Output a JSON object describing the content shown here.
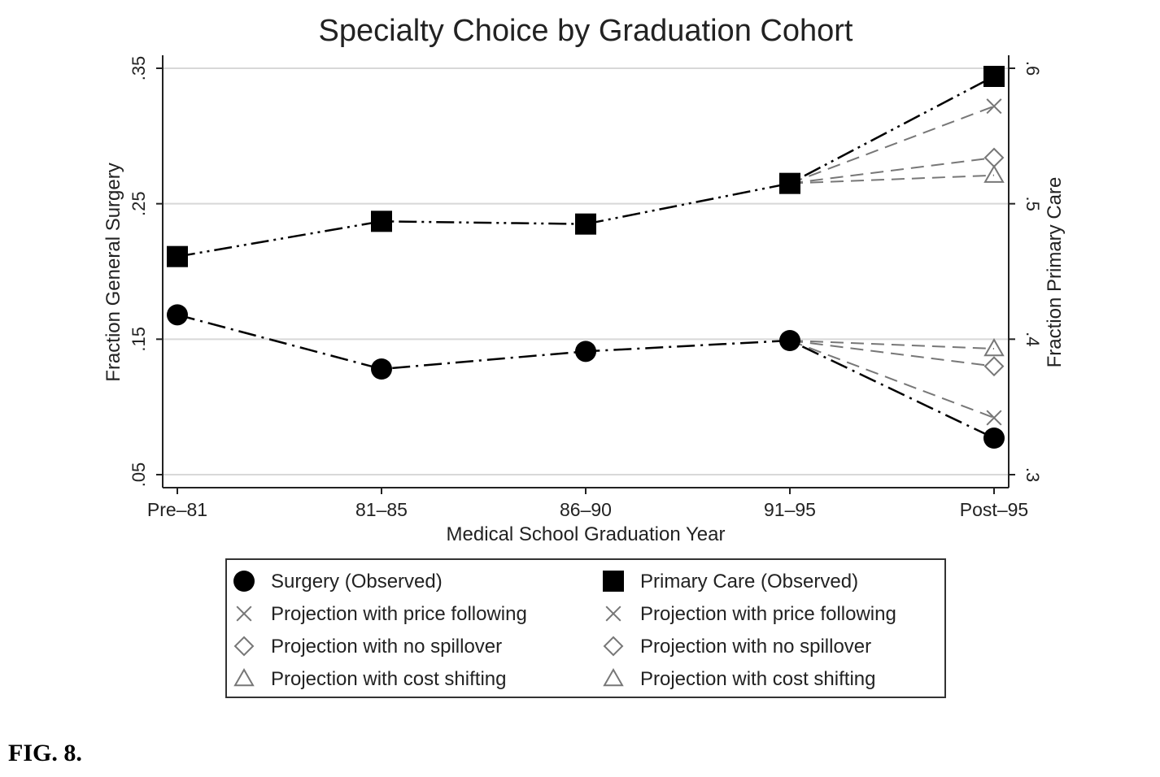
{
  "chart_data": {
    "type": "line",
    "title": "Specialty Choice by Graduation Cohort",
    "xlabel": "Medical School Graduation Year",
    "ylabel_left": "Fraction General Surgery",
    "ylabel_right": "Fraction Primary Care",
    "categories": [
      "Pre–81",
      "81–85",
      "86–90",
      "91–95",
      "Post–95"
    ],
    "ylim_left": [
      0.05,
      0.35
    ],
    "ylim_right": [
      0.3,
      0.6
    ],
    "yticks_left": [
      0.05,
      0.15,
      0.25,
      0.35
    ],
    "yticks_left_labels": [
      ".05",
      ".15",
      ".25",
      ".35"
    ],
    "yticks_right": [
      0.3,
      0.4,
      0.5,
      0.6
    ],
    "yticks_right_labels": [
      ".3",
      ".4",
      ".5",
      ".6"
    ],
    "grid": true,
    "series": [
      {
        "name": "Surgery (Observed)",
        "axis": "left",
        "marker": "circle",
        "line": "dashdot",
        "values": [
          0.168,
          0.128,
          0.141,
          0.149,
          0.077
        ]
      },
      {
        "name": "Primary Care (Observed)",
        "axis": "right",
        "marker": "square",
        "line": "dashdotdot",
        "values": [
          0.461,
          0.487,
          0.485,
          0.515,
          0.594
        ]
      },
      {
        "name": "Projection with price following",
        "axis": "left",
        "marker": "x",
        "line": "dash",
        "values": [
          null,
          null,
          null,
          0.149,
          0.092
        ]
      },
      {
        "name": "Projection with no spillover",
        "axis": "left",
        "marker": "diamond",
        "line": "dash",
        "values": [
          null,
          null,
          null,
          0.149,
          0.13
        ]
      },
      {
        "name": "Projection with cost shifting",
        "axis": "left",
        "marker": "triangle",
        "line": "dash",
        "values": [
          null,
          null,
          null,
          0.149,
          0.143
        ]
      },
      {
        "name": "Projection with price following",
        "axis": "right",
        "marker": "x",
        "line": "dash",
        "values": [
          null,
          null,
          null,
          0.515,
          0.572
        ]
      },
      {
        "name": "Projection with no spillover",
        "axis": "right",
        "marker": "diamond",
        "line": "dash",
        "values": [
          null,
          null,
          null,
          0.515,
          0.534
        ]
      },
      {
        "name": "Projection with cost shifting",
        "axis": "right",
        "marker": "triangle",
        "line": "dash",
        "values": [
          null,
          null,
          null,
          0.515,
          0.521
        ]
      }
    ],
    "legend": {
      "placement": "bottom",
      "columns": [
        [
          "Surgery (Observed)",
          "Projection with price following",
          "Projection with no spillover",
          "Projection with cost shifting"
        ],
        [
          "Primary Care (Observed)",
          "Projection with price following",
          "Projection with no spillover",
          "Projection with cost shifting"
        ]
      ]
    }
  },
  "colors": {
    "observed": "#000000",
    "projection": "#777777",
    "grid": "#d8d8d8",
    "axis": "#222222"
  },
  "caption": "FIG. 8."
}
